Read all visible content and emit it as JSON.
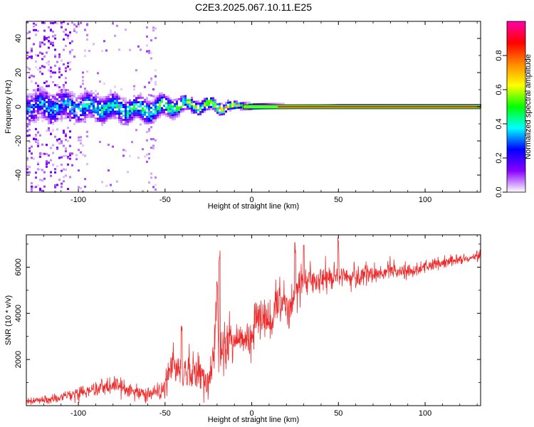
{
  "title": "C2E3.2025.067.10.11.E25",
  "colors": {
    "snr_line": "#ee2a2a",
    "axes": "#000000",
    "plot_bg": "#ffffff"
  },
  "chart_data": [
    {
      "type": "heatmap",
      "xlabel": "Height of straight line (km)",
      "ylabel": "Frequency (Hz)",
      "xlim": [
        -130,
        132
      ],
      "ylim": [
        -50,
        50
      ],
      "xticks": [
        -100,
        -50,
        0,
        50,
        100
      ],
      "xtick_labels": [
        "-100",
        "-50",
        "0",
        "50",
        "100"
      ],
      "yticks": [
        -40,
        -20,
        0,
        20,
        40
      ],
      "ytick_labels": [
        "-40",
        "-20",
        "0",
        "20",
        "40"
      ],
      "colorbar": {
        "label": "Normalized spectral amplitude",
        "range": [
          0,
          1
        ],
        "ticks": [
          0.0,
          0.2,
          0.4,
          0.6,
          0.8
        ],
        "tick_labels": [
          "0.0",
          "0.2",
          "0.4",
          "0.6",
          "0.8"
        ],
        "colormap": [
          "#ffffff",
          "#8800ff",
          "#0000ff",
          "#00ffff",
          "#00ff00",
          "#ffff00",
          "#ff8800",
          "#ff0000",
          "#ff00aa"
        ]
      },
      "band_envelope": {
        "x": [
          -128,
          -100,
          -80,
          -60,
          -50,
          -40,
          -30,
          -20,
          -10,
          0,
          20,
          50,
          100,
          132
        ],
        "half_width_hz": [
          8,
          7,
          6.5,
          6,
          5,
          4,
          3.5,
          3,
          2,
          1.5,
          1.2,
          1.0,
          1.0,
          1.0
        ],
        "center_hz": [
          0,
          0,
          -1,
          -2,
          0,
          1,
          1,
          0,
          1,
          0,
          0,
          0,
          0,
          0
        ],
        "peak_amplitude": [
          0.35,
          0.4,
          0.45,
          0.5,
          0.55,
          0.6,
          0.65,
          0.7,
          0.75,
          0.8,
          0.85,
          0.9,
          0.95,
          1.0
        ]
      },
      "scatter_region": {
        "x_max": -55,
        "y_range": [
          -50,
          50
        ]
      }
    },
    {
      "type": "line",
      "xlabel": "Height of straight line (km)",
      "ylabel": "SNR (10 * v/v)",
      "xlim": [
        -130,
        132
      ],
      "ylim": [
        0,
        7400
      ],
      "xticks": [
        -100,
        -50,
        0,
        50,
        100
      ],
      "xtick_labels": [
        "-100",
        "-50",
        "0",
        "50",
        "100"
      ],
      "yticks": [
        2000,
        4000,
        6000
      ],
      "ytick_labels": [
        "2000",
        "4000",
        "6000"
      ],
      "series": [
        {
          "name": "SNR",
          "x": [
            -130,
            -110,
            -95,
            -85,
            -80,
            -70,
            -60,
            -55,
            -50,
            -45,
            -40,
            -35,
            -30,
            -25,
            -22,
            -20,
            -19,
            -15,
            -10,
            -5,
            0,
            5,
            10,
            15,
            20,
            25,
            30,
            40,
            50,
            60,
            70,
            80,
            90,
            100,
            110,
            120,
            132
          ],
          "values": [
            150,
            350,
            650,
            850,
            1000,
            650,
            500,
            500,
            900,
            2000,
            1300,
            1500,
            1500,
            900,
            2000,
            5500,
            1700,
            2500,
            2800,
            3000,
            3100,
            3800,
            3600,
            4400,
            4300,
            4500,
            5600,
            5400,
            5600,
            5500,
            5700,
            5800,
            5800,
            6000,
            6200,
            6350,
            6500
          ],
          "noise": [
            120,
            200,
            300,
            350,
            350,
            300,
            250,
            250,
            500,
            900,
            700,
            800,
            900,
            700,
            900,
            800,
            700,
            800,
            800,
            800,
            800,
            800,
            800,
            900,
            800,
            700,
            700,
            500,
            450,
            450,
            400,
            350,
            300,
            250,
            200,
            200,
            200
          ],
          "spikes": [
            {
              "x": -40.5,
              "y": 3500
            },
            {
              "x": -18.5,
              "y": 6900
            },
            {
              "x": 25,
              "y": 7300
            },
            {
              "x": 30,
              "y": 7400
            },
            {
              "x": 50,
              "y": 7300
            }
          ]
        }
      ]
    }
  ]
}
